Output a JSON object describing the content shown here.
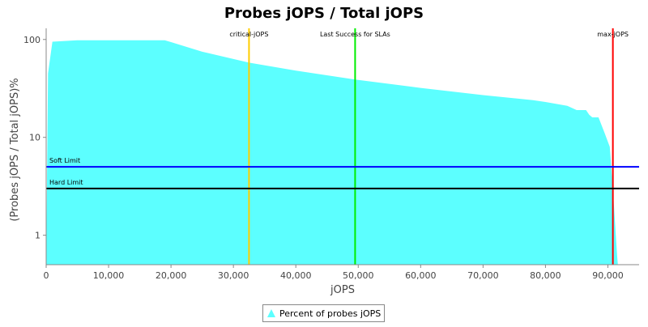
{
  "chart_data": {
    "type": "area",
    "title": "Probes jOPS / Total jOPS",
    "xlabel": "jOPS",
    "ylabel": "(Probes jOPS / Total jOPS)%",
    "xlim": [
      0,
      95000
    ],
    "ylim": [
      0.5,
      130
    ],
    "yscale": "log",
    "x_ticks": [
      0,
      10000,
      20000,
      30000,
      40000,
      50000,
      60000,
      70000,
      80000,
      90000
    ],
    "x_tick_labels": [
      "0",
      "10,000",
      "20,000",
      "30,000",
      "40,000",
      "50,000",
      "60,000",
      "70,000",
      "80,000",
      "90,000"
    ],
    "y_ticks": [
      1,
      10,
      100
    ],
    "y_tick_labels": [
      "1",
      "10",
      "100"
    ],
    "grid": false,
    "legend_position": "bottom",
    "series": [
      {
        "name": "Percent of probes jOPS",
        "color": "#5cffff",
        "x": [
          0,
          300,
          1000,
          5000,
          19000,
          20000,
          25000,
          32500,
          40000,
          49500,
          60000,
          70000,
          78000,
          80000,
          83500,
          85000,
          86500,
          87000,
          87500,
          88500,
          89500,
          90300,
          90800,
          91500,
          91600
        ],
        "y": [
          0.5,
          45,
          95,
          98,
          98,
          94,
          75,
          58,
          48,
          39,
          32,
          27,
          24,
          23,
          21,
          19,
          19,
          17,
          16,
          16,
          11,
          8,
          3,
          0.6,
          0.5
        ]
      }
    ],
    "reference_lines": [
      {
        "orientation": "vertical",
        "label": "critical-jOPS",
        "value": 32500,
        "color": "#ffcc00"
      },
      {
        "orientation": "vertical",
        "label": "Last Success for SLAs",
        "value": 49500,
        "color": "#00ee00"
      },
      {
        "orientation": "vertical",
        "label": "max-jOPS",
        "value": 90800,
        "color": "#ff0000"
      },
      {
        "orientation": "horizontal",
        "label": "Soft Limit",
        "value": 5,
        "color": "#0000ff"
      },
      {
        "orientation": "horizontal",
        "label": "Hard Limit",
        "value": 3,
        "color": "#000000"
      }
    ]
  }
}
